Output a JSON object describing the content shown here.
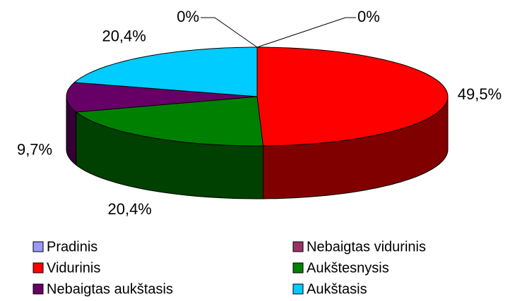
{
  "chart_data": {
    "type": "pie3d",
    "categories": [
      "Pradinis",
      "Nebaigtas vidurinis",
      "Vidurinis",
      "Aukštesnysis",
      "Nebaigtas aukštasis",
      "Aukštasis"
    ],
    "values": [
      0,
      0,
      49.5,
      20.4,
      9.7,
      20.4
    ],
    "value_labels": [
      "0%",
      "0%",
      "49,5%",
      "20,4%",
      "9,7%",
      "20,4%"
    ],
    "colors": [
      "#9999ff",
      "#993366",
      "#ff0000",
      "#008000",
      "#660066",
      "#00ccff"
    ],
    "legend": "bottom"
  }
}
